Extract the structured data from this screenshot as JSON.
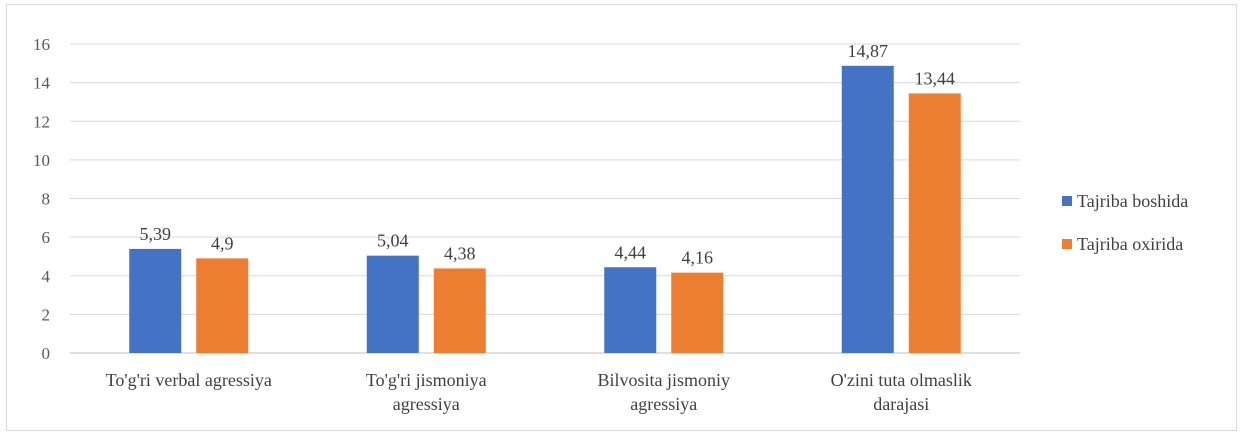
{
  "chart_data": {
    "type": "bar",
    "title": "",
    "xlabel": "",
    "ylabel": "",
    "ylim": [
      0,
      16
    ],
    "yticks": [
      0,
      2,
      4,
      6,
      8,
      10,
      12,
      14,
      16
    ],
    "grid": true,
    "legend_position": "right",
    "categories": [
      [
        "To'g'ri verbal agressiya"
      ],
      [
        "To'g'ri jismoniya",
        "agressiya"
      ],
      [
        "Bilvosita jismoniy",
        "agressiya"
      ],
      [
        "O'zini tuta olmaslik",
        "darajasi"
      ]
    ],
    "series": [
      {
        "name": "Tajriba boshida",
        "color": "#4472c4",
        "values": [
          5.39,
          5.04,
          4.44,
          14.87
        ],
        "labels": [
          "5,39",
          "5,04",
          "4,44",
          "14,87"
        ]
      },
      {
        "name": "Tajriba oxirida",
        "color": "#ed7d31",
        "values": [
          4.9,
          4.38,
          4.16,
          13.44
        ],
        "labels": [
          "4,9",
          "4,38",
          "4,16",
          "13,44"
        ]
      }
    ]
  }
}
